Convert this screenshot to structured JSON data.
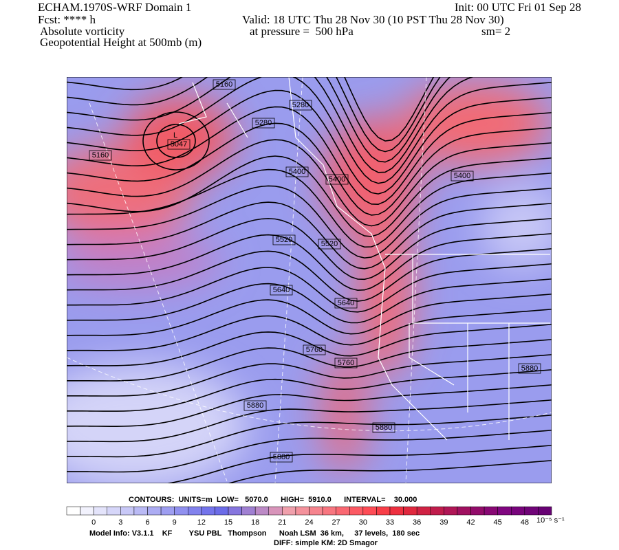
{
  "header": {
    "title": "ECHAM.1970S-WRF Domain 1",
    "init": "Init: 00 UTC Fri 01 Sep 28",
    "fcst": "Fcst: **** h",
    "valid": "Valid: 18 UTC Thu 28 Nov 30 (10 PST Thu 28 Nov 30)",
    "field": "Absolute vorticity",
    "pressure": "at pressure =  500 hPa",
    "smoothing": "sm= 2",
    "contour_field": "Geopotential Height at 500mb (m)"
  },
  "map": {
    "low_marker": "L",
    "contour_labels": [
      5160,
      5280,
      5280,
      5160,
      5047,
      5400,
      5400,
      5400,
      5520,
      5520,
      5640,
      5640,
      5760,
      5760,
      5880,
      5880,
      5880,
      5880
    ]
  },
  "footer": {
    "contours": "CONTOURS:  UNITS=m  LOW=   5070.0      HIGH=  5910.0      INTERVAL=    30.000",
    "colorbar": {
      "labels": [
        0,
        3,
        6,
        9,
        12,
        15,
        18,
        21,
        24,
        27,
        30,
        33,
        36,
        39,
        42,
        45,
        48
      ],
      "unit": "10⁻⁵ s⁻¹",
      "colors": [
        "#ffffff",
        "#f2f2fd",
        "#e4e4fb",
        "#d6d6f9",
        "#c8c8f7",
        "#babaf5",
        "#acacf3",
        "#9e9ef1",
        "#9090ef",
        "#8282ed",
        "#7474eb",
        "#6c6ce8",
        "#8676de",
        "#a080d2",
        "#bc8ac6",
        "#d894ba",
        "#f0a0ac",
        "#f4929c",
        "#f6848e",
        "#f87680",
        "#fa6872",
        "#fc5a64",
        "#fe4c56",
        "#f83e48",
        "#ee3040",
        "#e0283e",
        "#d02244",
        "#c01c4c",
        "#b01656",
        "#a01060",
        "#920c6a",
        "#880874",
        "#800680",
        "#78047c",
        "#700478",
        "#680274"
      ]
    },
    "model_info": "Model Info: V3.1.1    KF        YSU PBL   Thompson      Noah LSM  36 km,     37 levels,  180 sec",
    "diff": "DIFF: simple KM: 2D Smagor"
  }
}
